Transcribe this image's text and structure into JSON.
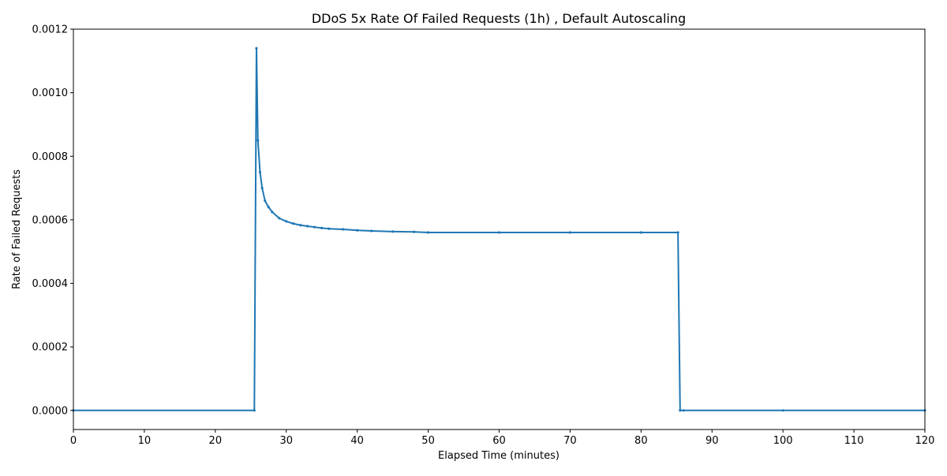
{
  "chart_data": {
    "type": "line",
    "title": "DDoS 5x Rate Of Failed Requests (1h) , Default Autoscaling",
    "xlabel": "Elapsed Time (minutes)",
    "ylabel": "Rate of Failed Requests",
    "xlim": [
      0,
      120
    ],
    "ylim": [
      -6e-05,
      0.0012
    ],
    "x_ticks": [
      0,
      10,
      20,
      30,
      40,
      50,
      60,
      70,
      80,
      90,
      100,
      110,
      120
    ],
    "x_tick_labels": [
      "0",
      "10",
      "20",
      "30",
      "40",
      "50",
      "60",
      "70",
      "80",
      "90",
      "100",
      "110",
      "120"
    ],
    "y_ticks": [
      0,
      0.0002,
      0.0004,
      0.0006,
      0.0008,
      0.001,
      0.0012
    ],
    "y_tick_labels": [
      "0.0000",
      "0.0002",
      "0.0004",
      "0.0006",
      "0.0008",
      "0.0010",
      "0.0012"
    ],
    "grid": false,
    "legend": "none",
    "colors": {
      "series": "#1f77b4",
      "axes": "#000000",
      "background": "#ffffff"
    },
    "series": [
      {
        "marker": "dot",
        "x": [
          0,
          25.5,
          25.8,
          26.0,
          26.3,
          26.6,
          27.0,
          27.5,
          28.0,
          29.0,
          30.0,
          31.0,
          32.0,
          33.0,
          34.0,
          35.0,
          36.0,
          38.0,
          40.0,
          42.0,
          45.0,
          48.0,
          50.0,
          60.0,
          70.0,
          80.0,
          85.2,
          85.5,
          86.0,
          100.0,
          120.0
        ],
        "y": [
          0,
          0,
          0.00114,
          0.00085,
          0.00075,
          0.0007,
          0.00066,
          0.00064,
          0.000625,
          0.000605,
          0.000595,
          0.000588,
          0.000583,
          0.00058,
          0.000577,
          0.000574,
          0.000572,
          0.00057,
          0.000567,
          0.000565,
          0.000563,
          0.000562,
          0.00056,
          0.00056,
          0.00056,
          0.00056,
          0.00056,
          0,
          0,
          0,
          0
        ]
      }
    ]
  }
}
